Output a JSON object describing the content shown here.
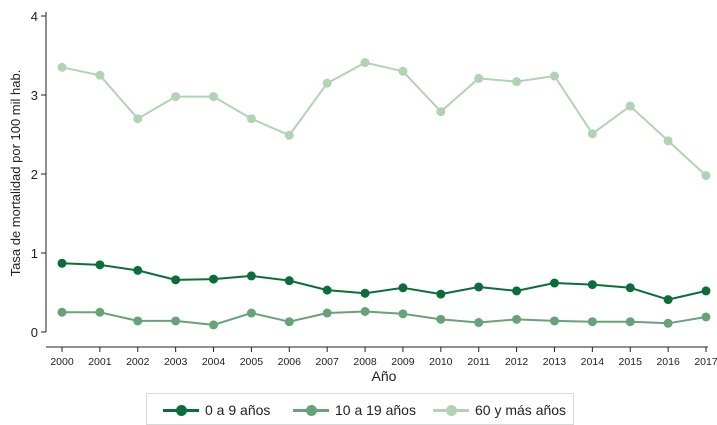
{
  "chart_data": {
    "type": "line",
    "title": "",
    "xlabel": "Año",
    "ylabel": "Tasa de mortalidad por 100 mil hab.",
    "x": [
      "2000",
      "2001",
      "2002",
      "2003",
      "2004",
      "2005",
      "2006",
      "2007",
      "2008",
      "2009",
      "2010",
      "2011",
      "2012",
      "2013",
      "2014",
      "2015",
      "2016",
      "2017"
    ],
    "ylim": [
      0,
      4
    ],
    "yticks": [
      "0",
      "1",
      "2",
      "3",
      "4"
    ],
    "grid": false,
    "legend_position": "bottom",
    "series": [
      {
        "name": "0 a 9 años",
        "color": "#0b6e3a",
        "values": [
          0.87,
          0.85,
          0.78,
          0.66,
          0.67,
          0.71,
          0.65,
          0.53,
          0.49,
          0.56,
          0.48,
          0.57,
          0.52,
          0.62,
          0.6,
          0.56,
          0.41,
          0.52
        ]
      },
      {
        "name": "10 a 19 años",
        "color": "#66a378",
        "values": [
          0.25,
          0.25,
          0.14,
          0.14,
          0.09,
          0.24,
          0.13,
          0.24,
          0.26,
          0.23,
          0.16,
          0.12,
          0.16,
          0.14,
          0.13,
          0.13,
          0.11,
          0.19
        ]
      },
      {
        "name": "60 y más años",
        "color": "#b2d3b3",
        "values": [
          3.35,
          3.25,
          2.7,
          2.98,
          2.98,
          2.7,
          2.49,
          3.15,
          3.41,
          3.3,
          2.79,
          3.21,
          3.17,
          3.24,
          2.51,
          2.86,
          2.42,
          1.98
        ]
      }
    ]
  }
}
